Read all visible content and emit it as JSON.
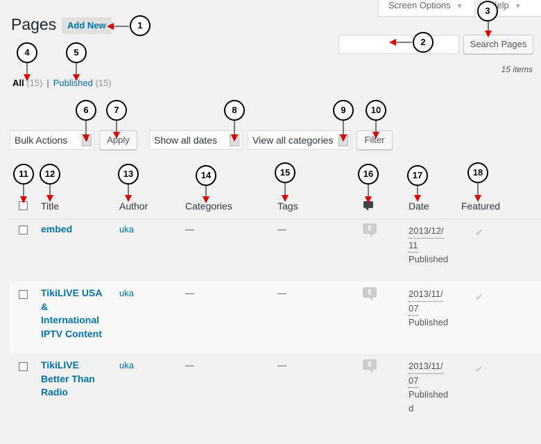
{
  "top_bar": {
    "screen_options": "Screen Options",
    "help": "Help"
  },
  "page": {
    "title": "Pages",
    "add_new": "Add New"
  },
  "search": {
    "button": "Search Pages",
    "items_count": "15 items"
  },
  "filters": {
    "all_label": "All",
    "all_count": "(15)",
    "separator": "|",
    "published_label": "Published",
    "published_count": "(15)"
  },
  "tablenav": {
    "bulk_actions": "Bulk Actions",
    "apply": "Apply",
    "dates": "Show all dates",
    "categories": "View all categories",
    "filter": "Filter"
  },
  "columns": {
    "title": "Title",
    "author": "Author",
    "categories": "Categories",
    "tags": "Tags",
    "date": "Date",
    "featured": "Featured"
  },
  "rows": [
    {
      "title_lines": [
        "embed"
      ],
      "author": "uka",
      "categories": "—",
      "tags": "—",
      "comments": "0",
      "date_lines": [
        "2013/12/",
        "11"
      ],
      "status": "Published"
    },
    {
      "title_lines": [
        "TikiLIVE USA",
        "&",
        "International",
        "IPTV Content"
      ],
      "author": "uka",
      "categories": "—",
      "tags": "—",
      "comments": "0",
      "date_lines": [
        "2013/11/",
        "07"
      ],
      "status": "Published"
    },
    {
      "title_lines": [
        "TikiLIVE",
        "Better Than",
        "Radio"
      ],
      "author": "uka",
      "categories": "—",
      "tags": "—",
      "comments": "0",
      "date_lines": [
        "2013/11/",
        "07"
      ],
      "status_lines": [
        "Published",
        "d"
      ]
    }
  ],
  "callouts": [
    "1",
    "2",
    "3",
    "4",
    "5",
    "6",
    "7",
    "8",
    "9",
    "10",
    "11",
    "12",
    "13",
    "14",
    "15",
    "16",
    "17",
    "18"
  ],
  "colors": {
    "link": "#0073aa",
    "arrow": "#e00000",
    "background": "#f1f1f1"
  },
  "icons": {
    "checkmark": "checkmark-icon",
    "comments": "comment-icon",
    "dropdown": "dropdown-arrow-icon"
  }
}
